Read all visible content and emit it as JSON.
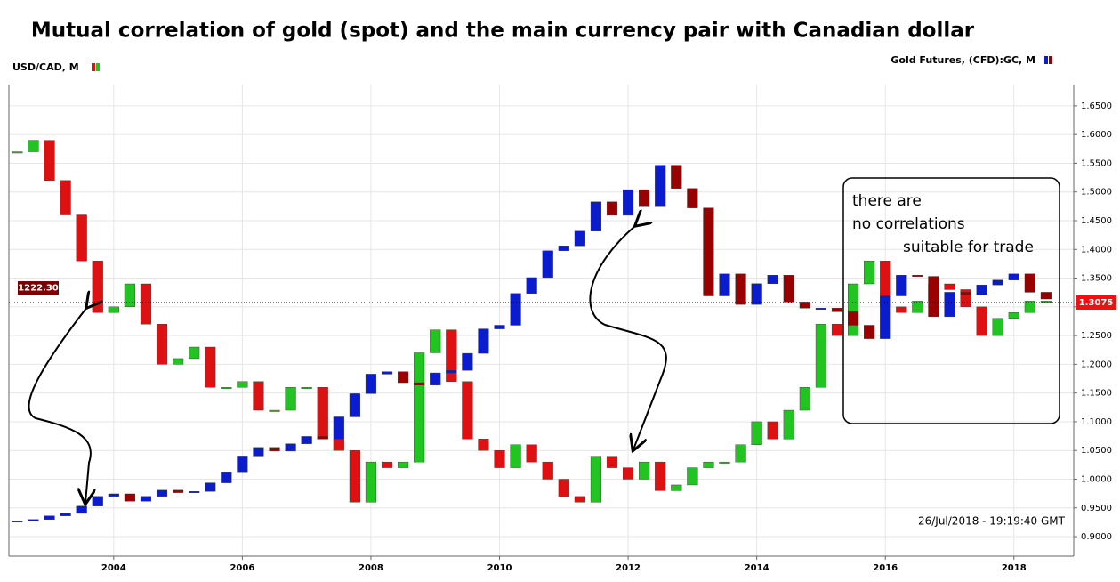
{
  "chart_data": {
    "type": "candlestick",
    "title": "Mutual correlation of gold (spot) and the main currency pair with Canadian dollar",
    "x": [
      2002.5,
      2002.75,
      2003,
      2003.25,
      2003.5,
      2003.75,
      2004,
      2004.25,
      2004.5,
      2004.75,
      2005,
      2005.25,
      2005.5,
      2005.75,
      2006,
      2006.25,
      2006.5,
      2006.75,
      2007,
      2007.25,
      2007.5,
      2007.75,
      2008,
      2008.25,
      2008.5,
      2008.75,
      2009,
      2009.25,
      2009.5,
      2009.75,
      2010,
      2010.25,
      2010.5,
      2010.75,
      2011,
      2011.25,
      2011.5,
      2011.75,
      2012,
      2012.25,
      2012.5,
      2012.75,
      2013,
      2013.25,
      2013.5,
      2013.75,
      2014,
      2014.25,
      2014.5,
      2014.75,
      2015,
      2015.25,
      2015.5,
      2015.75,
      2016,
      2016.25,
      2016.5,
      2016.75,
      2017,
      2017.25,
      2017.5,
      2017.75,
      2018,
      2018.25,
      2018.5
    ],
    "series": [
      {
        "name": "USD/CAD, M",
        "up_color": "#22c422",
        "down_color": "#dd1111",
        "values": [
          1.57,
          1.59,
          1.52,
          1.46,
          1.38,
          1.29,
          1.3,
          1.34,
          1.27,
          1.2,
          1.21,
          1.23,
          1.16,
          1.16,
          1.17,
          1.12,
          1.12,
          1.16,
          1.16,
          1.07,
          1.05,
          0.96,
          1.03,
          1.02,
          1.03,
          1.22,
          1.26,
          1.17,
          1.07,
          1.05,
          1.02,
          1.06,
          1.03,
          1.0,
          0.97,
          0.96,
          1.04,
          1.02,
          1.0,
          1.03,
          0.98,
          0.99,
          1.02,
          1.03,
          1.03,
          1.06,
          1.1,
          1.07,
          1.12,
          1.16,
          1.27,
          1.25,
          1.34,
          1.38,
          1.3,
          1.29,
          1.31,
          1.34,
          1.33,
          1.3,
          1.25,
          1.28,
          1.29,
          1.31,
          1.31
        ]
      },
      {
        "name": "Gold Futures, (CFD):GC, M",
        "up_color": "#0a1ccc",
        "down_color": "#990000",
        "axis": "y2",
        "values": [
          315,
          320,
          335,
          345,
          375,
          415,
          425,
          395,
          415,
          440,
          430,
          435,
          470,
          515,
          580,
          615,
          600,
          630,
          660,
          650,
          740,
          835,
          915,
          925,
          880,
          870,
          920,
          930,
          1000,
          1100,
          1115,
          1245,
          1310,
          1420,
          1440,
          1500,
          1620,
          1565,
          1670,
          1600,
          1770,
          1675,
          1595,
          1235,
          1325,
          1200,
          1285,
          1320,
          1210,
          1185,
          1185,
          1170,
          1115,
          1060,
          1235,
          1320,
          1315,
          1150,
          1250,
          1240,
          1280,
          1300,
          1325,
          1250,
          1222.3
        ]
      }
    ],
    "xlim": [
      2002.37,
      2018.93
    ],
    "xticks": [
      2004,
      2006,
      2008,
      2010,
      2012,
      2014,
      2016,
      2018
    ],
    "ylim": [
      0.866,
      1.687
    ],
    "yticks": [
      {
        "value": 0.9,
        "label": "0.9000"
      },
      {
        "value": 0.95,
        "label": "0.9500"
      },
      {
        "value": 1.0,
        "label": "1.0000"
      },
      {
        "value": 1.05,
        "label": "1.0500"
      },
      {
        "value": 1.1,
        "label": "1.1000"
      },
      {
        "value": 1.15,
        "label": "1.1500"
      },
      {
        "value": 1.2,
        "label": "1.2000"
      },
      {
        "value": 1.25,
        "label": "1.2500"
      },
      {
        "value": 1.3,
        "label": "1.3000"
      },
      {
        "value": 1.35,
        "label": "1.3500"
      },
      {
        "value": 1.4,
        "label": "1.4000"
      },
      {
        "value": 1.45,
        "label": "1.4500"
      },
      {
        "value": 1.5,
        "label": "1.5000"
      },
      {
        "value": 1.55,
        "label": "1.5500"
      },
      {
        "value": 1.6,
        "label": "1.6000"
      },
      {
        "value": 1.65,
        "label": "1.6500"
      }
    ],
    "y2lim": [
      170,
      2100
    ],
    "usdcad_last": 1.3075,
    "gold_last": {
      "value": 1222.3,
      "label": "1222.30"
    },
    "timestamp": "26/Jul/2018 - 19:19:40 GMT",
    "annotation": [
      "there are",
      "no correlations",
      "suitable for trade"
    ],
    "grid": true
  }
}
